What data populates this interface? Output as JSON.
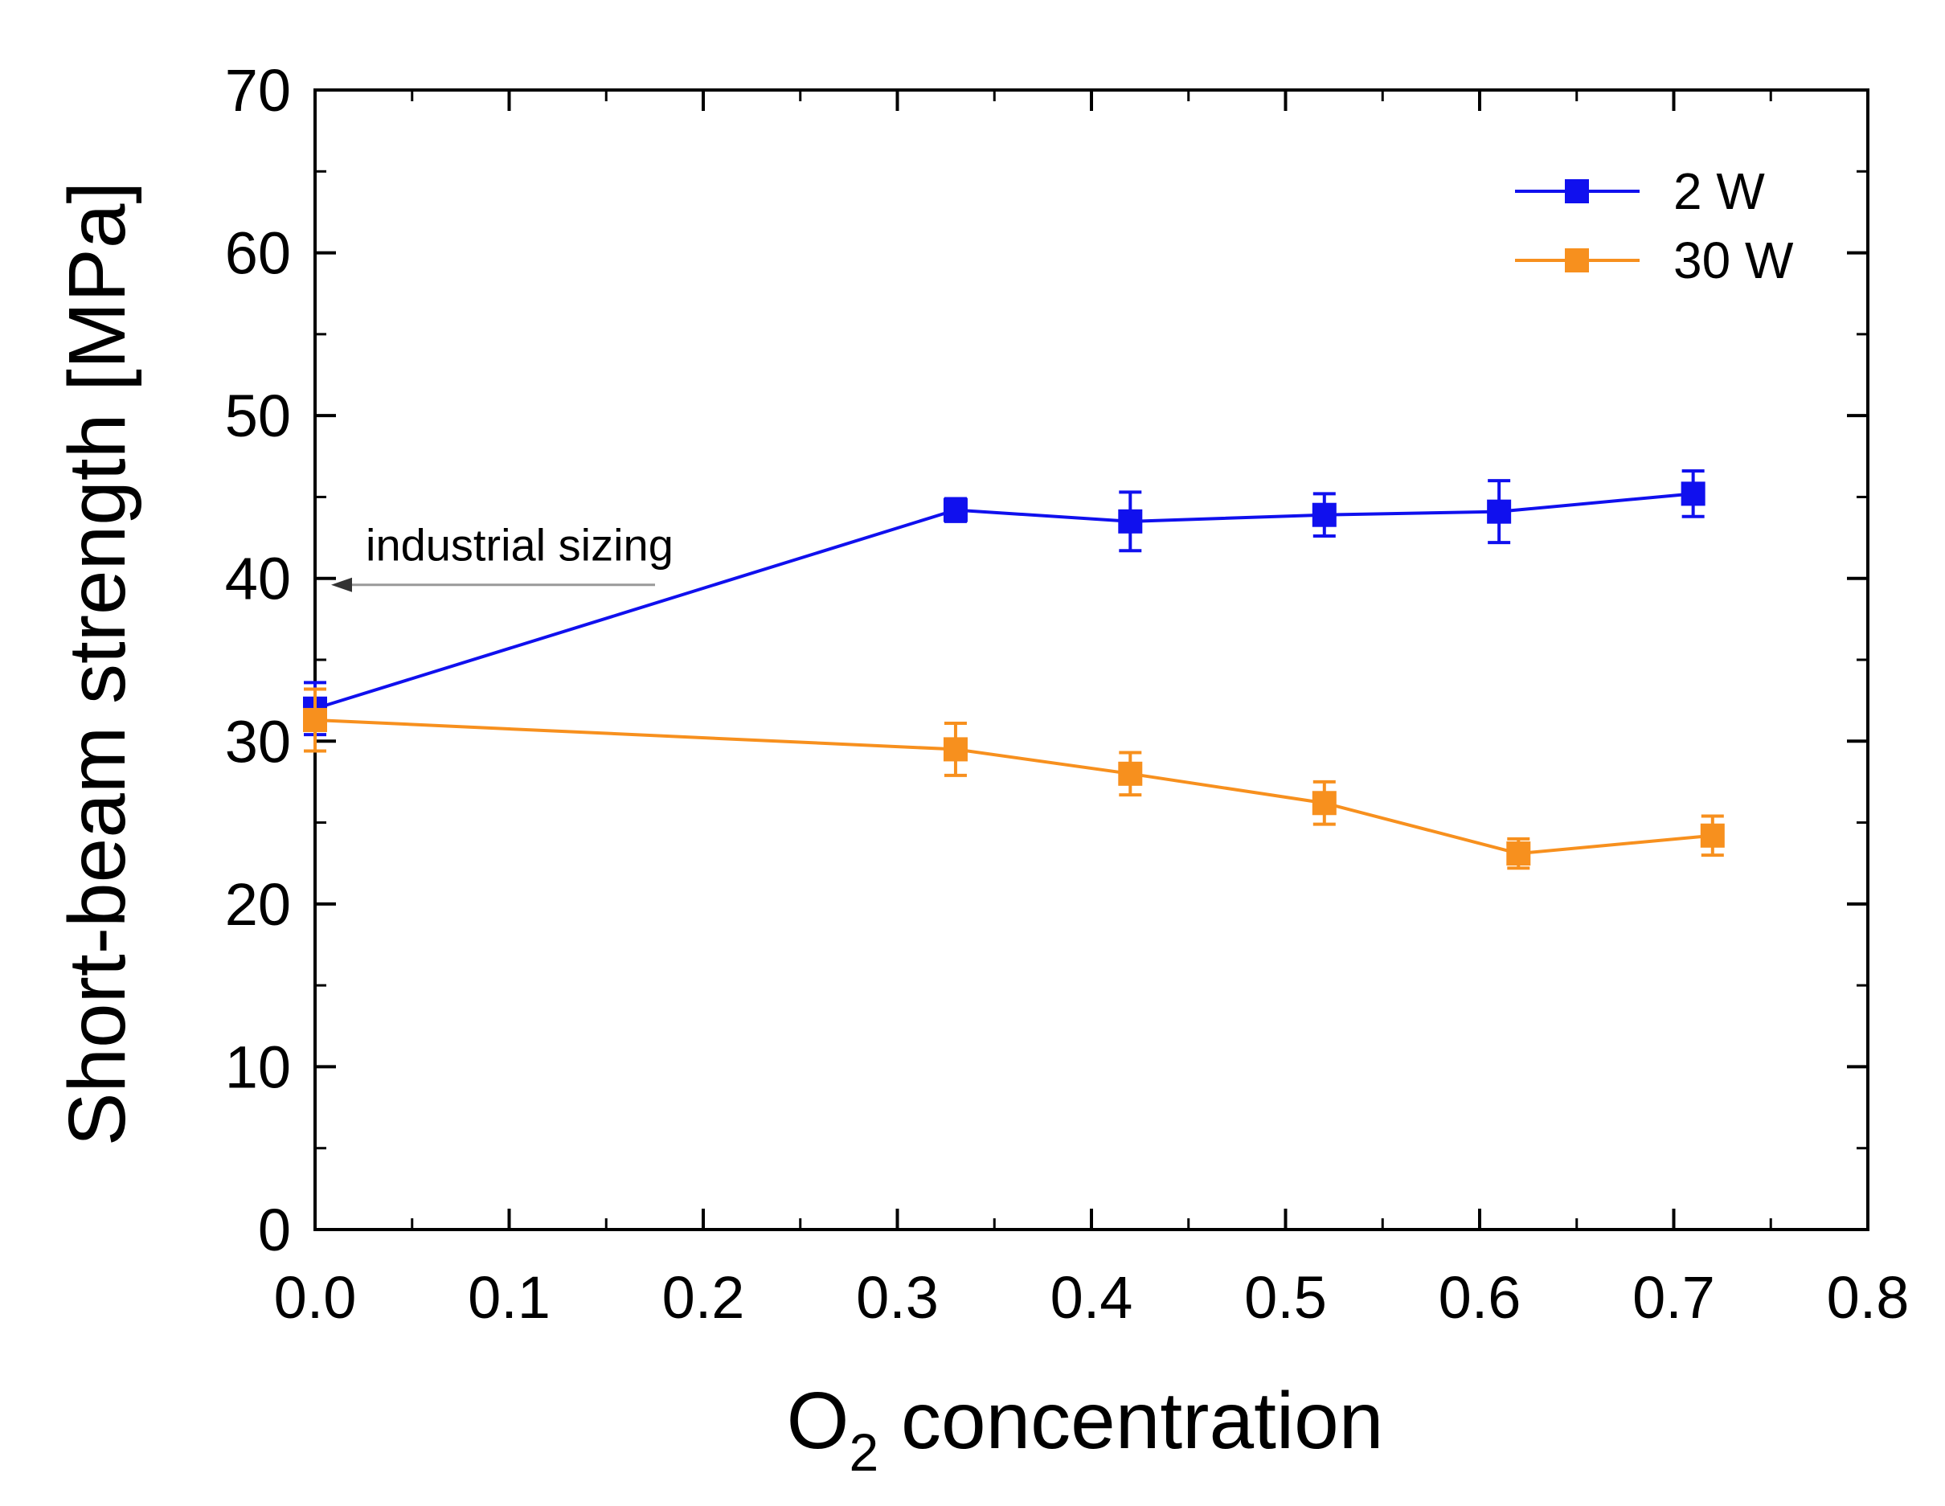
{
  "chart_data": {
    "type": "line",
    "title": "",
    "xlabel_main": "O",
    "xlabel_sub": "2",
    "xlabel_rest": " concentration",
    "ylabel": "Short-beam strength [MPa]",
    "xlim": [
      0.0,
      0.8
    ],
    "ylim": [
      0,
      70
    ],
    "x_ticks": [
      0.0,
      0.1,
      0.2,
      0.3,
      0.4,
      0.5,
      0.6,
      0.7,
      0.8
    ],
    "x_tick_labels": [
      "0.0",
      "0.1",
      "0.2",
      "0.3",
      "0.4",
      "0.5",
      "0.6",
      "0.7",
      "0.8"
    ],
    "y_ticks": [
      0,
      10,
      20,
      30,
      40,
      50,
      60,
      70
    ],
    "y_tick_labels": [
      "0",
      "10",
      "20",
      "30",
      "40",
      "50",
      "60",
      "70"
    ],
    "grid": false,
    "legend_position": "top-right",
    "series": [
      {
        "name": "2 W",
        "color": "#1010ee",
        "marker": "square",
        "x": [
          0.0,
          0.33,
          0.42,
          0.52,
          0.61,
          0.71
        ],
        "y": [
          32.0,
          44.2,
          43.5,
          43.9,
          44.1,
          45.2
        ],
        "yerr": [
          1.6,
          0.7,
          1.8,
          1.3,
          1.9,
          1.4
        ]
      },
      {
        "name": "30 W",
        "color": "#f7901e",
        "marker": "square",
        "x": [
          0.0,
          0.33,
          0.42,
          0.52,
          0.62,
          0.72
        ],
        "y": [
          31.3,
          29.5,
          28.0,
          26.2,
          23.1,
          24.2
        ],
        "yerr": [
          1.9,
          1.6,
          1.3,
          1.3,
          0.9,
          1.2
        ]
      }
    ],
    "annotation": {
      "text": "industrial sizing",
      "points_to_y": 40
    }
  }
}
